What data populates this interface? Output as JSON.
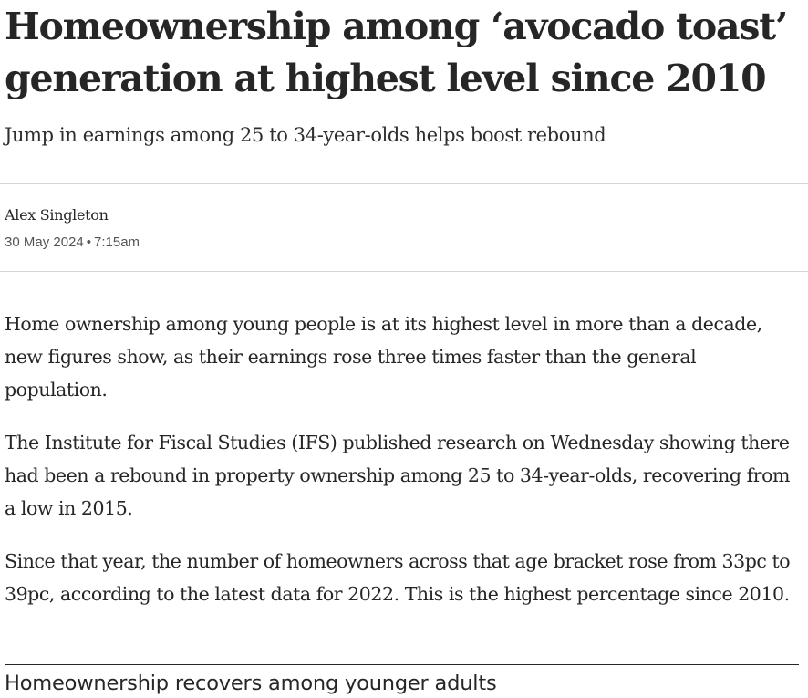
{
  "article": {
    "headline": "Homeownership among ‘avocado toast’ generation at highest level since 2010",
    "standfirst": "Jump in earnings among 25 to 34-year-olds helps boost rebound",
    "author": "Alex Singleton",
    "date": "30 May 2024",
    "date_separator": "•",
    "time": "7:15am",
    "paragraphs": [
      "Home ownership among young people is at its highest level in more than a decade, new figures show, as their earnings rose three times faster than the general population.",
      "The Institute for Fiscal Studies (IFS) published research on Wednesday showing there had been a rebound in property ownership among 25 to 34-year-olds, recovering from a low in 2015.",
      "Since that year, the number of homeowners across that age bracket rose from 33pc to 39pc, according to the latest data for 2022. This is the highest percentage since 2010."
    ]
  },
  "chart_block": {
    "title": "Homeownership recovers among younger adults"
  }
}
